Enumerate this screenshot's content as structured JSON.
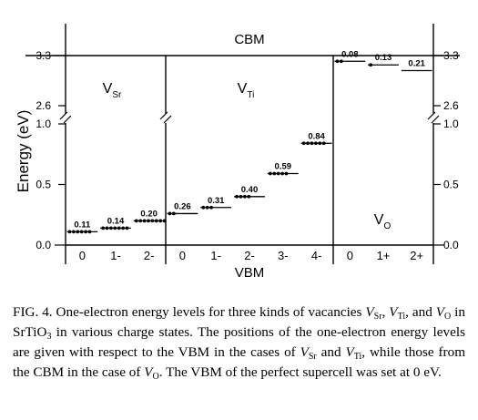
{
  "chart_data": {
    "type": "scatter",
    "title": "",
    "ylabel": "Energy  (eV)",
    "xlabel": "VBM",
    "top_label": "CBM",
    "y_ticks_left": [
      "0.0",
      "0.5",
      "1.0",
      "2.6",
      "3.3"
    ],
    "y_ticks_right": [
      "0.0",
      "0.5",
      "1.0",
      "2.6",
      "3.3"
    ],
    "y_tick_values": [
      0.0,
      0.5,
      1.0,
      2.6,
      3.3
    ],
    "y_axis_break": [
      1.0,
      2.6
    ],
    "panels": [
      {
        "name": "V",
        "sub": "Sr",
        "categories": [
          "0",
          "1-",
          "2-"
        ],
        "levels": [
          {
            "charge": "0",
            "energy": 0.11,
            "label": "0.11",
            "electrons": 6
          },
          {
            "charge": "1-",
            "energy": 0.14,
            "label": "0.14",
            "electrons": 7
          },
          {
            "charge": "2-",
            "energy": 0.2,
            "label": "0.20",
            "electrons": 8
          }
        ]
      },
      {
        "name": "V",
        "sub": "Ti",
        "categories": [
          "0",
          "1-",
          "2-",
          "3-",
          "4-"
        ],
        "levels": [
          {
            "charge": "0",
            "energy": 0.26,
            "label": "0.26",
            "electrons": 2
          },
          {
            "charge": "1-",
            "energy": 0.31,
            "label": "0.31",
            "electrons": 3
          },
          {
            "charge": "2-",
            "energy": 0.4,
            "label": "0.40",
            "electrons": 4
          },
          {
            "charge": "3-",
            "energy": 0.59,
            "label": "0.59",
            "electrons": 5
          },
          {
            "charge": "4-",
            "energy": 0.84,
            "label": "0.84",
            "electrons": 6
          }
        ]
      },
      {
        "name": "V",
        "sub": "O",
        "categories": [
          "0",
          "1+",
          "2+"
        ],
        "levels": [
          {
            "charge": "0",
            "energy": 3.22,
            "label": "0.08",
            "electrons": 2
          },
          {
            "charge": "1+",
            "energy": 3.17,
            "label": "0.13",
            "electrons": 1
          },
          {
            "charge": "2+",
            "energy": 3.09,
            "label": "0.21",
            "electrons": 0
          }
        ]
      }
    ],
    "caption": {
      "fig": "FIG. 4.",
      "segments": [
        {
          "t": "FIG. 4.  One-electron energy levels for three kinds of vacancies ",
          "s": "n"
        },
        {
          "t": "V",
          "s": "i"
        },
        {
          "t": "Sr",
          "s": "sub"
        },
        {
          "t": ", ",
          "s": "n"
        },
        {
          "t": "V",
          "s": "i"
        },
        {
          "t": "Ti",
          "s": "sub"
        },
        {
          "t": ", and ",
          "s": "n"
        },
        {
          "t": "V",
          "s": "i"
        },
        {
          "t": "O",
          "s": "sub"
        },
        {
          "t": " in SrTiO",
          "s": "n"
        },
        {
          "t": "3",
          "s": "sub"
        },
        {
          "t": " in various charge states. The positions of the one-electron energy levels are given with respect to the VBM in the cases of ",
          "s": "n"
        },
        {
          "t": "V",
          "s": "i"
        },
        {
          "t": "Sr",
          "s": "sub"
        },
        {
          "t": " and ",
          "s": "n"
        },
        {
          "t": "V",
          "s": "i"
        },
        {
          "t": "Ti",
          "s": "sub"
        },
        {
          "t": ", while those from the CBM in the case of ",
          "s": "n"
        },
        {
          "t": "V",
          "s": "i"
        },
        {
          "t": "O",
          "s": "sub"
        },
        {
          "t": ". The VBM of the perfect supercell was set at 0 eV.",
          "s": "n"
        }
      ]
    }
  }
}
